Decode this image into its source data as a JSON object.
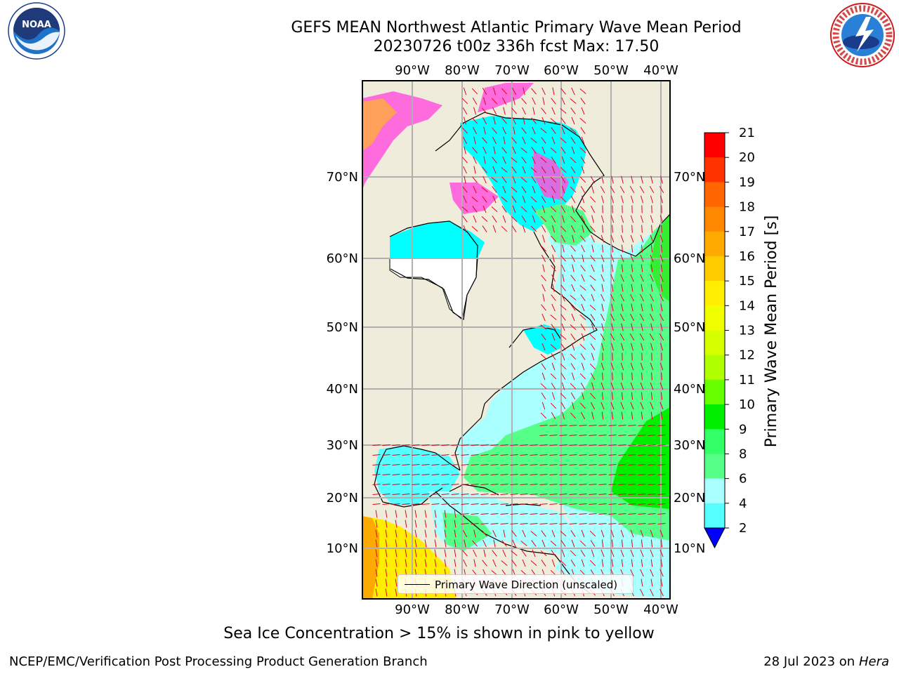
{
  "title_line1": "GEFS MEAN Northwest Atlantic Primary Wave Mean Period",
  "title_line2": "20230726 t00z 336h fcst   Max: 17.50",
  "map": {
    "lon_labels": [
      "90°W",
      "80°W",
      "70°W",
      "60°W",
      "50°W",
      "40°W"
    ],
    "lat_labels": [
      "70°N",
      "60°N",
      "50°N",
      "40°N",
      "30°N",
      "20°N",
      "10°N"
    ],
    "legend_label": "Primary Wave Direction (unscaled)",
    "land_color": "#efecdc",
    "vector_color": "#e0001a"
  },
  "colorbar": {
    "label": "Primary Wave Mean Period [s]",
    "ticks": [
      "21",
      "20",
      "19",
      "18",
      "17",
      "16",
      "15",
      "14",
      "13",
      "12",
      "11",
      "10",
      "9",
      "8",
      "6",
      "4",
      "2"
    ],
    "colors": [
      "#ff0000",
      "#ff3300",
      "#ff6600",
      "#ff8800",
      "#ffaa00",
      "#ffcc00",
      "#ffee00",
      "#f0ff00",
      "#d6ff00",
      "#b0ff00",
      "#66ff00",
      "#00ee00",
      "#33ff66",
      "#55ff88",
      "#aaffff",
      "#55ffff",
      "#00ffff",
      "#0066ff",
      "#0000ff"
    ]
  },
  "sea_ice_note": "Sea Ice Concentration > 15% is shown in pink to yellow",
  "footer_left": "NCEP/EMC/Verification Post Processing Product Generation Branch",
  "footer_right_date": "28 Jul 2023 on ",
  "footer_right_machine": "Hera",
  "logos": {
    "left": "noaa-logo",
    "right": "national-weather-service-logo",
    "left_text": "NOAA",
    "right_text": "NATIONAL WEATHER SERVICE"
  }
}
